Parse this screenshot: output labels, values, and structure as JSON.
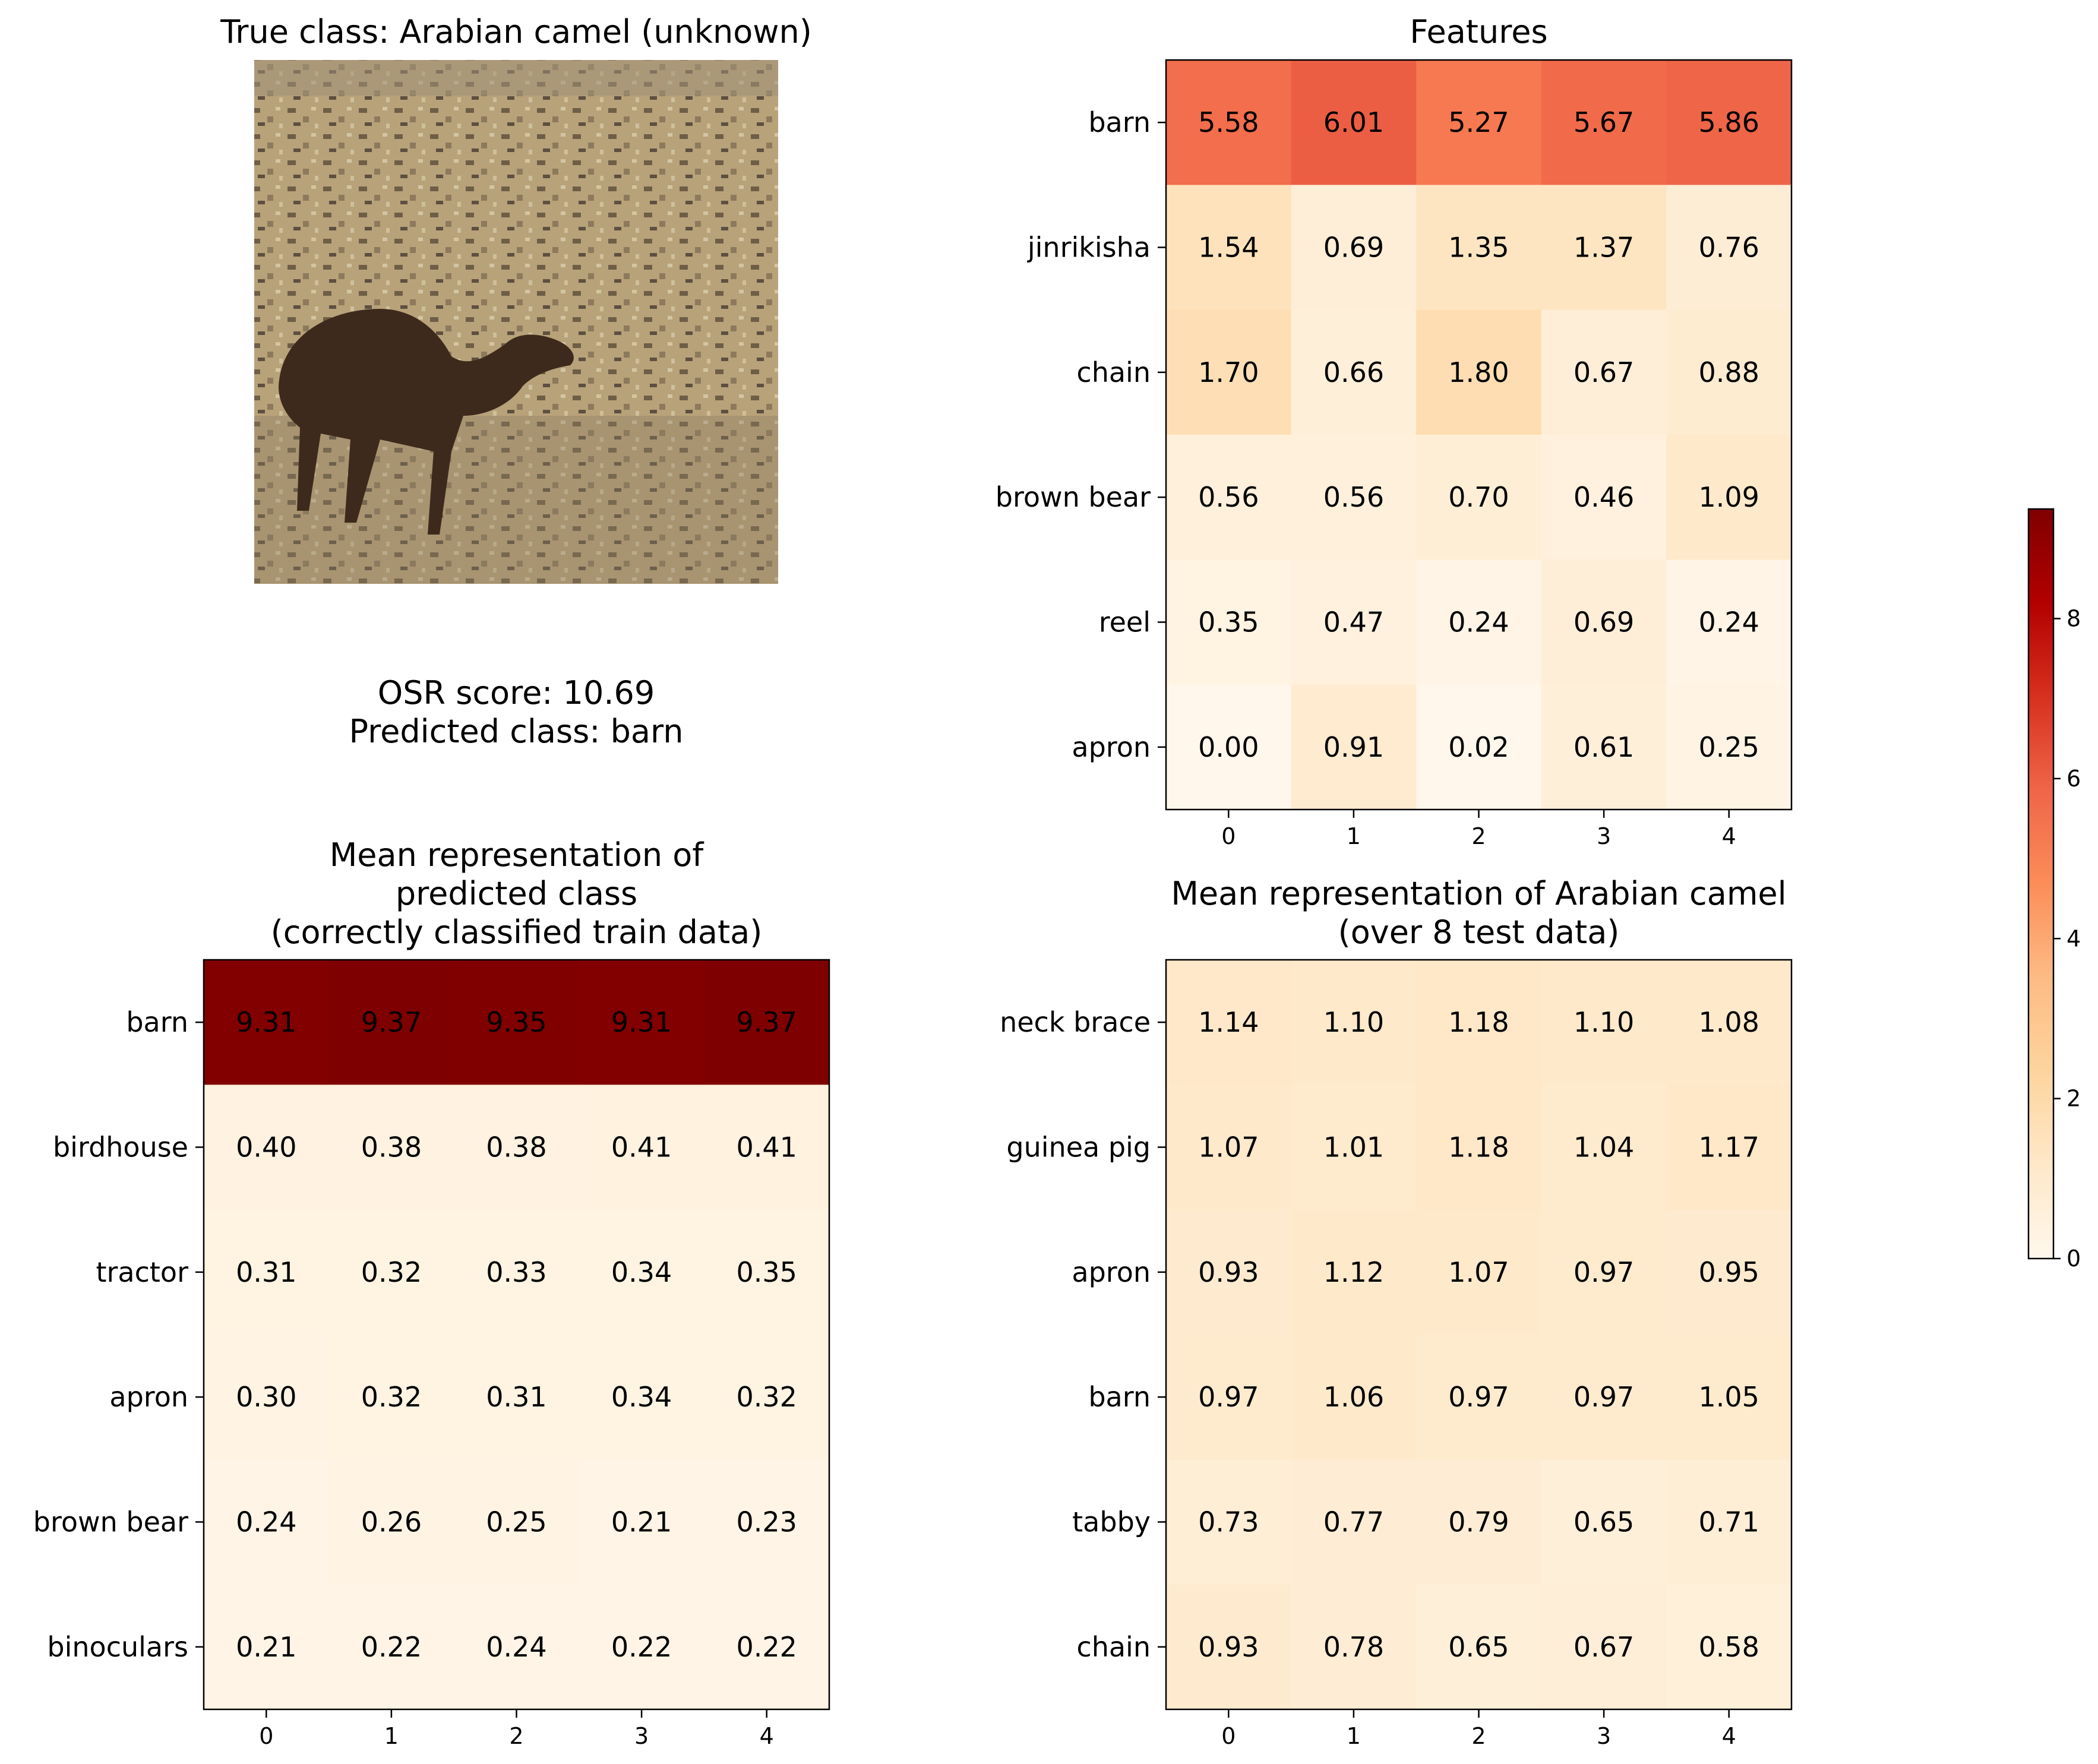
{
  "image_panel": {
    "title": "True class: Arabian camel (unknown)",
    "score_line": "OSR score: 10.69",
    "predicted_line": "Predicted class: barn"
  },
  "colorbar": {
    "colormap": "OrRd",
    "vmin": 0,
    "vmax": 9.37,
    "ticks": [
      0,
      2,
      4,
      6,
      8
    ]
  },
  "chart_data": [
    {
      "type": "heatmap",
      "id": "features",
      "title_lines": [
        "Features"
      ],
      "x": [
        "0",
        "1",
        "2",
        "3",
        "4"
      ],
      "rows": [
        "barn",
        "jinrikisha",
        "chain",
        "brown bear",
        "reel",
        "apron"
      ],
      "values": [
        [
          5.58,
          6.01,
          5.27,
          5.67,
          5.86
        ],
        [
          1.54,
          0.69,
          1.35,
          1.37,
          0.76
        ],
        [
          1.7,
          0.66,
          1.8,
          0.67,
          0.88
        ],
        [
          0.56,
          0.56,
          0.7,
          0.46,
          1.09
        ],
        [
          0.35,
          0.47,
          0.24,
          0.69,
          0.24
        ],
        [
          0.0,
          0.91,
          0.02,
          0.61,
          0.25
        ]
      ]
    },
    {
      "type": "heatmap",
      "id": "mean-predicted",
      "title_lines": [
        "Mean representation of",
        "predicted class",
        "(correctly classified train data)"
      ],
      "x": [
        "0",
        "1",
        "2",
        "3",
        "4"
      ],
      "rows": [
        "barn",
        "birdhouse",
        "tractor",
        "apron",
        "brown bear",
        "binoculars"
      ],
      "values": [
        [
          9.31,
          9.37,
          9.35,
          9.31,
          9.37
        ],
        [
          0.4,
          0.38,
          0.38,
          0.41,
          0.41
        ],
        [
          0.31,
          0.32,
          0.33,
          0.34,
          0.35
        ],
        [
          0.3,
          0.32,
          0.31,
          0.34,
          0.32
        ],
        [
          0.24,
          0.26,
          0.25,
          0.21,
          0.23
        ],
        [
          0.21,
          0.22,
          0.24,
          0.22,
          0.22
        ]
      ]
    },
    {
      "type": "heatmap",
      "id": "mean-true",
      "title_lines": [
        "Mean representation of Arabian camel",
        "(over 8 test data)"
      ],
      "x": [
        "0",
        "1",
        "2",
        "3",
        "4"
      ],
      "rows": [
        "neck brace",
        "guinea pig",
        "apron",
        "barn",
        "tabby",
        "chain"
      ],
      "values": [
        [
          1.14,
          1.1,
          1.18,
          1.1,
          1.08
        ],
        [
          1.07,
          1.01,
          1.18,
          1.04,
          1.17
        ],
        [
          0.93,
          1.12,
          1.07,
          0.97,
          0.95
        ],
        [
          0.97,
          1.06,
          0.97,
          0.97,
          1.05
        ],
        [
          0.73,
          0.77,
          0.79,
          0.65,
          0.71
        ],
        [
          0.93,
          0.78,
          0.65,
          0.67,
          0.58
        ]
      ]
    }
  ]
}
